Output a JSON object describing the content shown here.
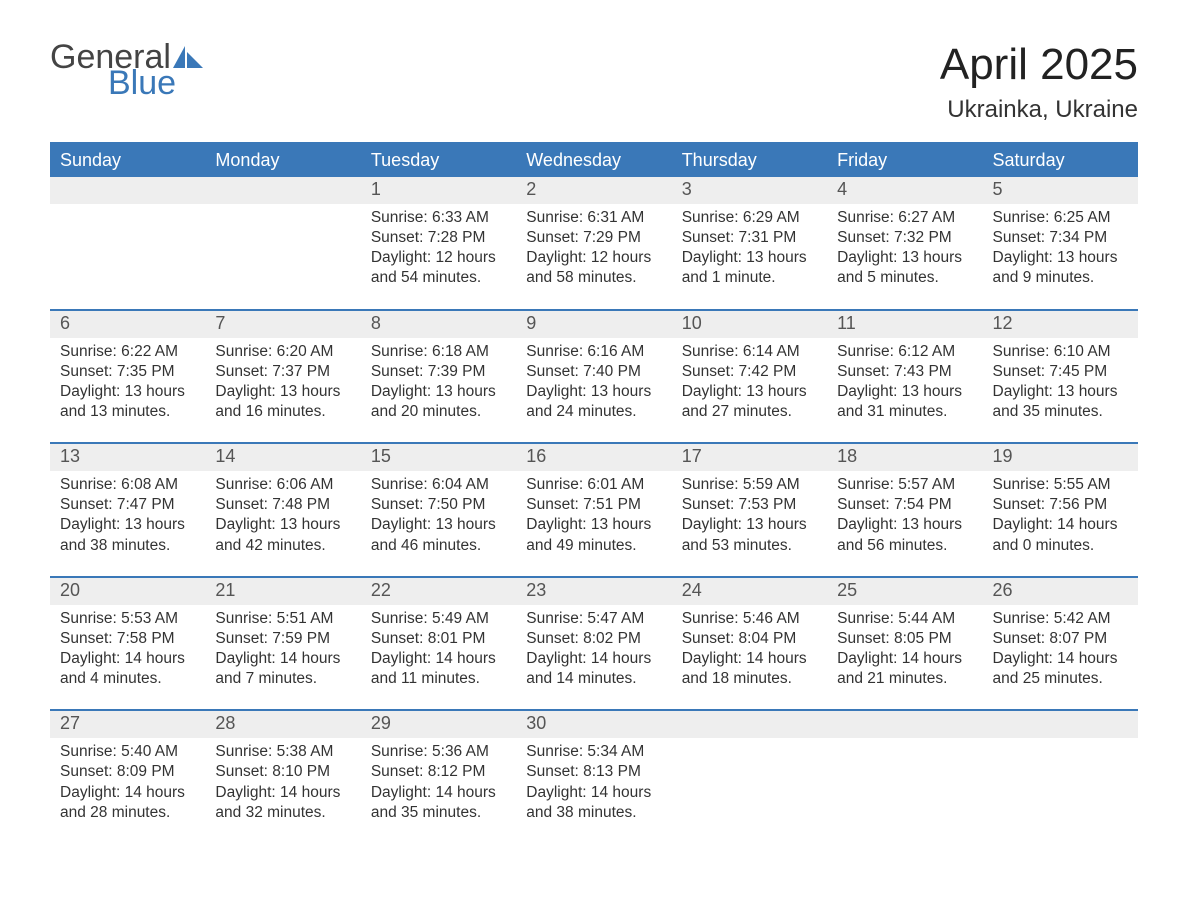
{
  "logo": {
    "text_top": "General",
    "text_bottom": "Blue",
    "color_top": "#444444",
    "color_bottom": "#3a78b8"
  },
  "title": "April 2025",
  "subtitle": "Ukrainka, Ukraine",
  "colors": {
    "header_bg": "#3a78b8",
    "header_text": "#ffffff",
    "band_bg": "#eeeeee",
    "daynum_text": "#555555",
    "body_text": "#333333",
    "rule": "#3a78b8",
    "page_bg": "#ffffff"
  },
  "typography": {
    "title_fontsize": 44,
    "subtitle_fontsize": 24,
    "dow_fontsize": 18,
    "daynum_fontsize": 18,
    "body_fontsize": 15.5,
    "font_family": "Arial"
  },
  "day_labels": [
    "Sunday",
    "Monday",
    "Tuesday",
    "Wednesday",
    "Thursday",
    "Friday",
    "Saturday"
  ],
  "weeks": [
    [
      {
        "n": "",
        "sunrise": "",
        "sunset": "",
        "day1": "",
        "day2": ""
      },
      {
        "n": "",
        "sunrise": "",
        "sunset": "",
        "day1": "",
        "day2": ""
      },
      {
        "n": "1",
        "sunrise": "Sunrise: 6:33 AM",
        "sunset": "Sunset: 7:28 PM",
        "day1": "Daylight: 12 hours",
        "day2": "and 54 minutes."
      },
      {
        "n": "2",
        "sunrise": "Sunrise: 6:31 AM",
        "sunset": "Sunset: 7:29 PM",
        "day1": "Daylight: 12 hours",
        "day2": "and 58 minutes."
      },
      {
        "n": "3",
        "sunrise": "Sunrise: 6:29 AM",
        "sunset": "Sunset: 7:31 PM",
        "day1": "Daylight: 13 hours",
        "day2": "and 1 minute."
      },
      {
        "n": "4",
        "sunrise": "Sunrise: 6:27 AM",
        "sunset": "Sunset: 7:32 PM",
        "day1": "Daylight: 13 hours",
        "day2": "and 5 minutes."
      },
      {
        "n": "5",
        "sunrise": "Sunrise: 6:25 AM",
        "sunset": "Sunset: 7:34 PM",
        "day1": "Daylight: 13 hours",
        "day2": "and 9 minutes."
      }
    ],
    [
      {
        "n": "6",
        "sunrise": "Sunrise: 6:22 AM",
        "sunset": "Sunset: 7:35 PM",
        "day1": "Daylight: 13 hours",
        "day2": "and 13 minutes."
      },
      {
        "n": "7",
        "sunrise": "Sunrise: 6:20 AM",
        "sunset": "Sunset: 7:37 PM",
        "day1": "Daylight: 13 hours",
        "day2": "and 16 minutes."
      },
      {
        "n": "8",
        "sunrise": "Sunrise: 6:18 AM",
        "sunset": "Sunset: 7:39 PM",
        "day1": "Daylight: 13 hours",
        "day2": "and 20 minutes."
      },
      {
        "n": "9",
        "sunrise": "Sunrise: 6:16 AM",
        "sunset": "Sunset: 7:40 PM",
        "day1": "Daylight: 13 hours",
        "day2": "and 24 minutes."
      },
      {
        "n": "10",
        "sunrise": "Sunrise: 6:14 AM",
        "sunset": "Sunset: 7:42 PM",
        "day1": "Daylight: 13 hours",
        "day2": "and 27 minutes."
      },
      {
        "n": "11",
        "sunrise": "Sunrise: 6:12 AM",
        "sunset": "Sunset: 7:43 PM",
        "day1": "Daylight: 13 hours",
        "day2": "and 31 minutes."
      },
      {
        "n": "12",
        "sunrise": "Sunrise: 6:10 AM",
        "sunset": "Sunset: 7:45 PM",
        "day1": "Daylight: 13 hours",
        "day2": "and 35 minutes."
      }
    ],
    [
      {
        "n": "13",
        "sunrise": "Sunrise: 6:08 AM",
        "sunset": "Sunset: 7:47 PM",
        "day1": "Daylight: 13 hours",
        "day2": "and 38 minutes."
      },
      {
        "n": "14",
        "sunrise": "Sunrise: 6:06 AM",
        "sunset": "Sunset: 7:48 PM",
        "day1": "Daylight: 13 hours",
        "day2": "and 42 minutes."
      },
      {
        "n": "15",
        "sunrise": "Sunrise: 6:04 AM",
        "sunset": "Sunset: 7:50 PM",
        "day1": "Daylight: 13 hours",
        "day2": "and 46 minutes."
      },
      {
        "n": "16",
        "sunrise": "Sunrise: 6:01 AM",
        "sunset": "Sunset: 7:51 PM",
        "day1": "Daylight: 13 hours",
        "day2": "and 49 minutes."
      },
      {
        "n": "17",
        "sunrise": "Sunrise: 5:59 AM",
        "sunset": "Sunset: 7:53 PM",
        "day1": "Daylight: 13 hours",
        "day2": "and 53 minutes."
      },
      {
        "n": "18",
        "sunrise": "Sunrise: 5:57 AM",
        "sunset": "Sunset: 7:54 PM",
        "day1": "Daylight: 13 hours",
        "day2": "and 56 minutes."
      },
      {
        "n": "19",
        "sunrise": "Sunrise: 5:55 AM",
        "sunset": "Sunset: 7:56 PM",
        "day1": "Daylight: 14 hours",
        "day2": "and 0 minutes."
      }
    ],
    [
      {
        "n": "20",
        "sunrise": "Sunrise: 5:53 AM",
        "sunset": "Sunset: 7:58 PM",
        "day1": "Daylight: 14 hours",
        "day2": "and 4 minutes."
      },
      {
        "n": "21",
        "sunrise": "Sunrise: 5:51 AM",
        "sunset": "Sunset: 7:59 PM",
        "day1": "Daylight: 14 hours",
        "day2": "and 7 minutes."
      },
      {
        "n": "22",
        "sunrise": "Sunrise: 5:49 AM",
        "sunset": "Sunset: 8:01 PM",
        "day1": "Daylight: 14 hours",
        "day2": "and 11 minutes."
      },
      {
        "n": "23",
        "sunrise": "Sunrise: 5:47 AM",
        "sunset": "Sunset: 8:02 PM",
        "day1": "Daylight: 14 hours",
        "day2": "and 14 minutes."
      },
      {
        "n": "24",
        "sunrise": "Sunrise: 5:46 AM",
        "sunset": "Sunset: 8:04 PM",
        "day1": "Daylight: 14 hours",
        "day2": "and 18 minutes."
      },
      {
        "n": "25",
        "sunrise": "Sunrise: 5:44 AM",
        "sunset": "Sunset: 8:05 PM",
        "day1": "Daylight: 14 hours",
        "day2": "and 21 minutes."
      },
      {
        "n": "26",
        "sunrise": "Sunrise: 5:42 AM",
        "sunset": "Sunset: 8:07 PM",
        "day1": "Daylight: 14 hours",
        "day2": "and 25 minutes."
      }
    ],
    [
      {
        "n": "27",
        "sunrise": "Sunrise: 5:40 AM",
        "sunset": "Sunset: 8:09 PM",
        "day1": "Daylight: 14 hours",
        "day2": "and 28 minutes."
      },
      {
        "n": "28",
        "sunrise": "Sunrise: 5:38 AM",
        "sunset": "Sunset: 8:10 PM",
        "day1": "Daylight: 14 hours",
        "day2": "and 32 minutes."
      },
      {
        "n": "29",
        "sunrise": "Sunrise: 5:36 AM",
        "sunset": "Sunset: 8:12 PM",
        "day1": "Daylight: 14 hours",
        "day2": "and 35 minutes."
      },
      {
        "n": "30",
        "sunrise": "Sunrise: 5:34 AM",
        "sunset": "Sunset: 8:13 PM",
        "day1": "Daylight: 14 hours",
        "day2": "and 38 minutes."
      },
      {
        "n": "",
        "sunrise": "",
        "sunset": "",
        "day1": "",
        "day2": ""
      },
      {
        "n": "",
        "sunrise": "",
        "sunset": "",
        "day1": "",
        "day2": ""
      },
      {
        "n": "",
        "sunrise": "",
        "sunset": "",
        "day1": "",
        "day2": ""
      }
    ]
  ]
}
